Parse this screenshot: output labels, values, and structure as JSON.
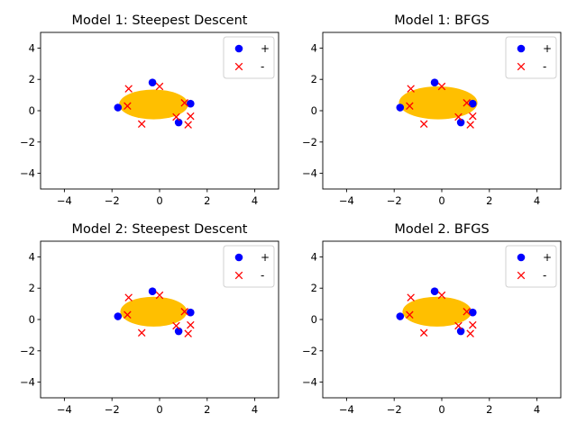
{
  "colors": {
    "positive": "#0000ff",
    "negative": "#ff0000",
    "region": "#ffbf00",
    "axes": "#000000",
    "background": "#ffffff"
  },
  "chart_data": [
    {
      "type": "scatter",
      "title": "Model 1: Steepest Descent",
      "xlim": [
        -5,
        5
      ],
      "ylim": [
        -5,
        5
      ],
      "xticks": [
        -4,
        -2,
        0,
        2,
        4
      ],
      "yticks": [
        -4,
        -2,
        0,
        2,
        4
      ],
      "tick_labels": [
        "−4",
        "−2",
        "0",
        "2",
        "4"
      ],
      "grid": false,
      "legend_position": "top-right",
      "region": {
        "shape": "ellipse",
        "cx": -0.25,
        "cy": 0.4,
        "rx": 1.45,
        "ry": 0.95,
        "color": "#ffbf00"
      },
      "series": [
        {
          "name": "+",
          "marker": "circle",
          "color": "#0000ff",
          "x": [
            -0.3,
            -1.75,
            1.3,
            0.8
          ],
          "y": [
            1.8,
            0.2,
            0.45,
            -0.75
          ]
        },
        {
          "name": "-",
          "marker": "x",
          "color": "#ff0000",
          "x": [
            -1.3,
            0,
            -1.35,
            1.05,
            0.7,
            1.3,
            1.2,
            -0.75
          ],
          "y": [
            1.4,
            1.55,
            0.3,
            0.5,
            -0.4,
            -0.35,
            -0.9,
            -0.85
          ]
        }
      ]
    },
    {
      "type": "scatter",
      "title": "Model 1: BFGS",
      "xlim": [
        -5,
        5
      ],
      "ylim": [
        -5,
        5
      ],
      "xticks": [
        -4,
        -2,
        0,
        2,
        4
      ],
      "yticks": [
        -4,
        -2,
        0,
        2,
        4
      ],
      "tick_labels": [
        "−4",
        "−2",
        "0",
        "2",
        "4"
      ],
      "grid": false,
      "legend_position": "top-right",
      "region": {
        "shape": "ellipse",
        "cx": -0.15,
        "cy": 0.5,
        "rx": 1.65,
        "ry": 1.05,
        "color": "#ffbf00"
      },
      "series": [
        {
          "name": "+",
          "marker": "circle",
          "color": "#0000ff",
          "x": [
            -0.3,
            -1.75,
            1.3,
            0.8
          ],
          "y": [
            1.8,
            0.2,
            0.45,
            -0.75
          ]
        },
        {
          "name": "-",
          "marker": "x",
          "color": "#ff0000",
          "x": [
            -1.3,
            0,
            -1.35,
            1.05,
            0.7,
            1.3,
            1.2,
            -0.75
          ],
          "y": [
            1.4,
            1.55,
            0.3,
            0.5,
            -0.4,
            -0.35,
            -0.9,
            -0.85
          ]
        }
      ]
    },
    {
      "type": "scatter",
      "title": "Model 2: Steepest Descent",
      "xlim": [
        -5,
        5
      ],
      "ylim": [
        -5,
        5
      ],
      "xticks": [
        -4,
        -2,
        0,
        2,
        4
      ],
      "yticks": [
        -4,
        -2,
        0,
        2,
        4
      ],
      "tick_labels": [
        "−4",
        "−2",
        "0",
        "2",
        "4"
      ],
      "grid": false,
      "legend_position": "top-right",
      "region": {
        "shape": "ellipse",
        "cx": -0.25,
        "cy": 0.5,
        "rx": 1.4,
        "ry": 0.95,
        "color": "#ffbf00"
      },
      "series": [
        {
          "name": "+",
          "marker": "circle",
          "color": "#0000ff",
          "x": [
            -0.3,
            -1.75,
            1.3,
            0.8
          ],
          "y": [
            1.8,
            0.2,
            0.45,
            -0.75
          ]
        },
        {
          "name": "-",
          "marker": "x",
          "color": "#ff0000",
          "x": [
            -1.3,
            0,
            -1.35,
            1.05,
            0.7,
            1.3,
            1.2,
            -0.75
          ],
          "y": [
            1.4,
            1.55,
            0.3,
            0.5,
            -0.4,
            -0.35,
            -0.9,
            -0.85
          ]
        }
      ]
    },
    {
      "type": "scatter",
      "title": "Model 2. BFGS",
      "xlim": [
        -5,
        5
      ],
      "ylim": [
        -5,
        5
      ],
      "xticks": [
        -4,
        -2,
        0,
        2,
        4
      ],
      "yticks": [
        -4,
        -2,
        0,
        2,
        4
      ],
      "tick_labels": [
        "−4",
        "−2",
        "0",
        "2",
        "4"
      ],
      "grid": false,
      "legend_position": "top-right",
      "region": {
        "shape": "ellipse",
        "cx": -0.2,
        "cy": 0.5,
        "rx": 1.45,
        "ry": 0.95,
        "color": "#ffbf00"
      },
      "series": [
        {
          "name": "+",
          "marker": "circle",
          "color": "#0000ff",
          "x": [
            -0.3,
            -1.75,
            1.3,
            0.8
          ],
          "y": [
            1.8,
            0.2,
            0.45,
            -0.75
          ]
        },
        {
          "name": "-",
          "marker": "x",
          "color": "#ff0000",
          "x": [
            -1.3,
            0,
            -1.35,
            1.05,
            0.7,
            1.3,
            1.2,
            -0.75
          ],
          "y": [
            1.4,
            1.55,
            0.3,
            0.5,
            -0.4,
            -0.35,
            -0.9,
            -0.85
          ]
        }
      ]
    }
  ]
}
